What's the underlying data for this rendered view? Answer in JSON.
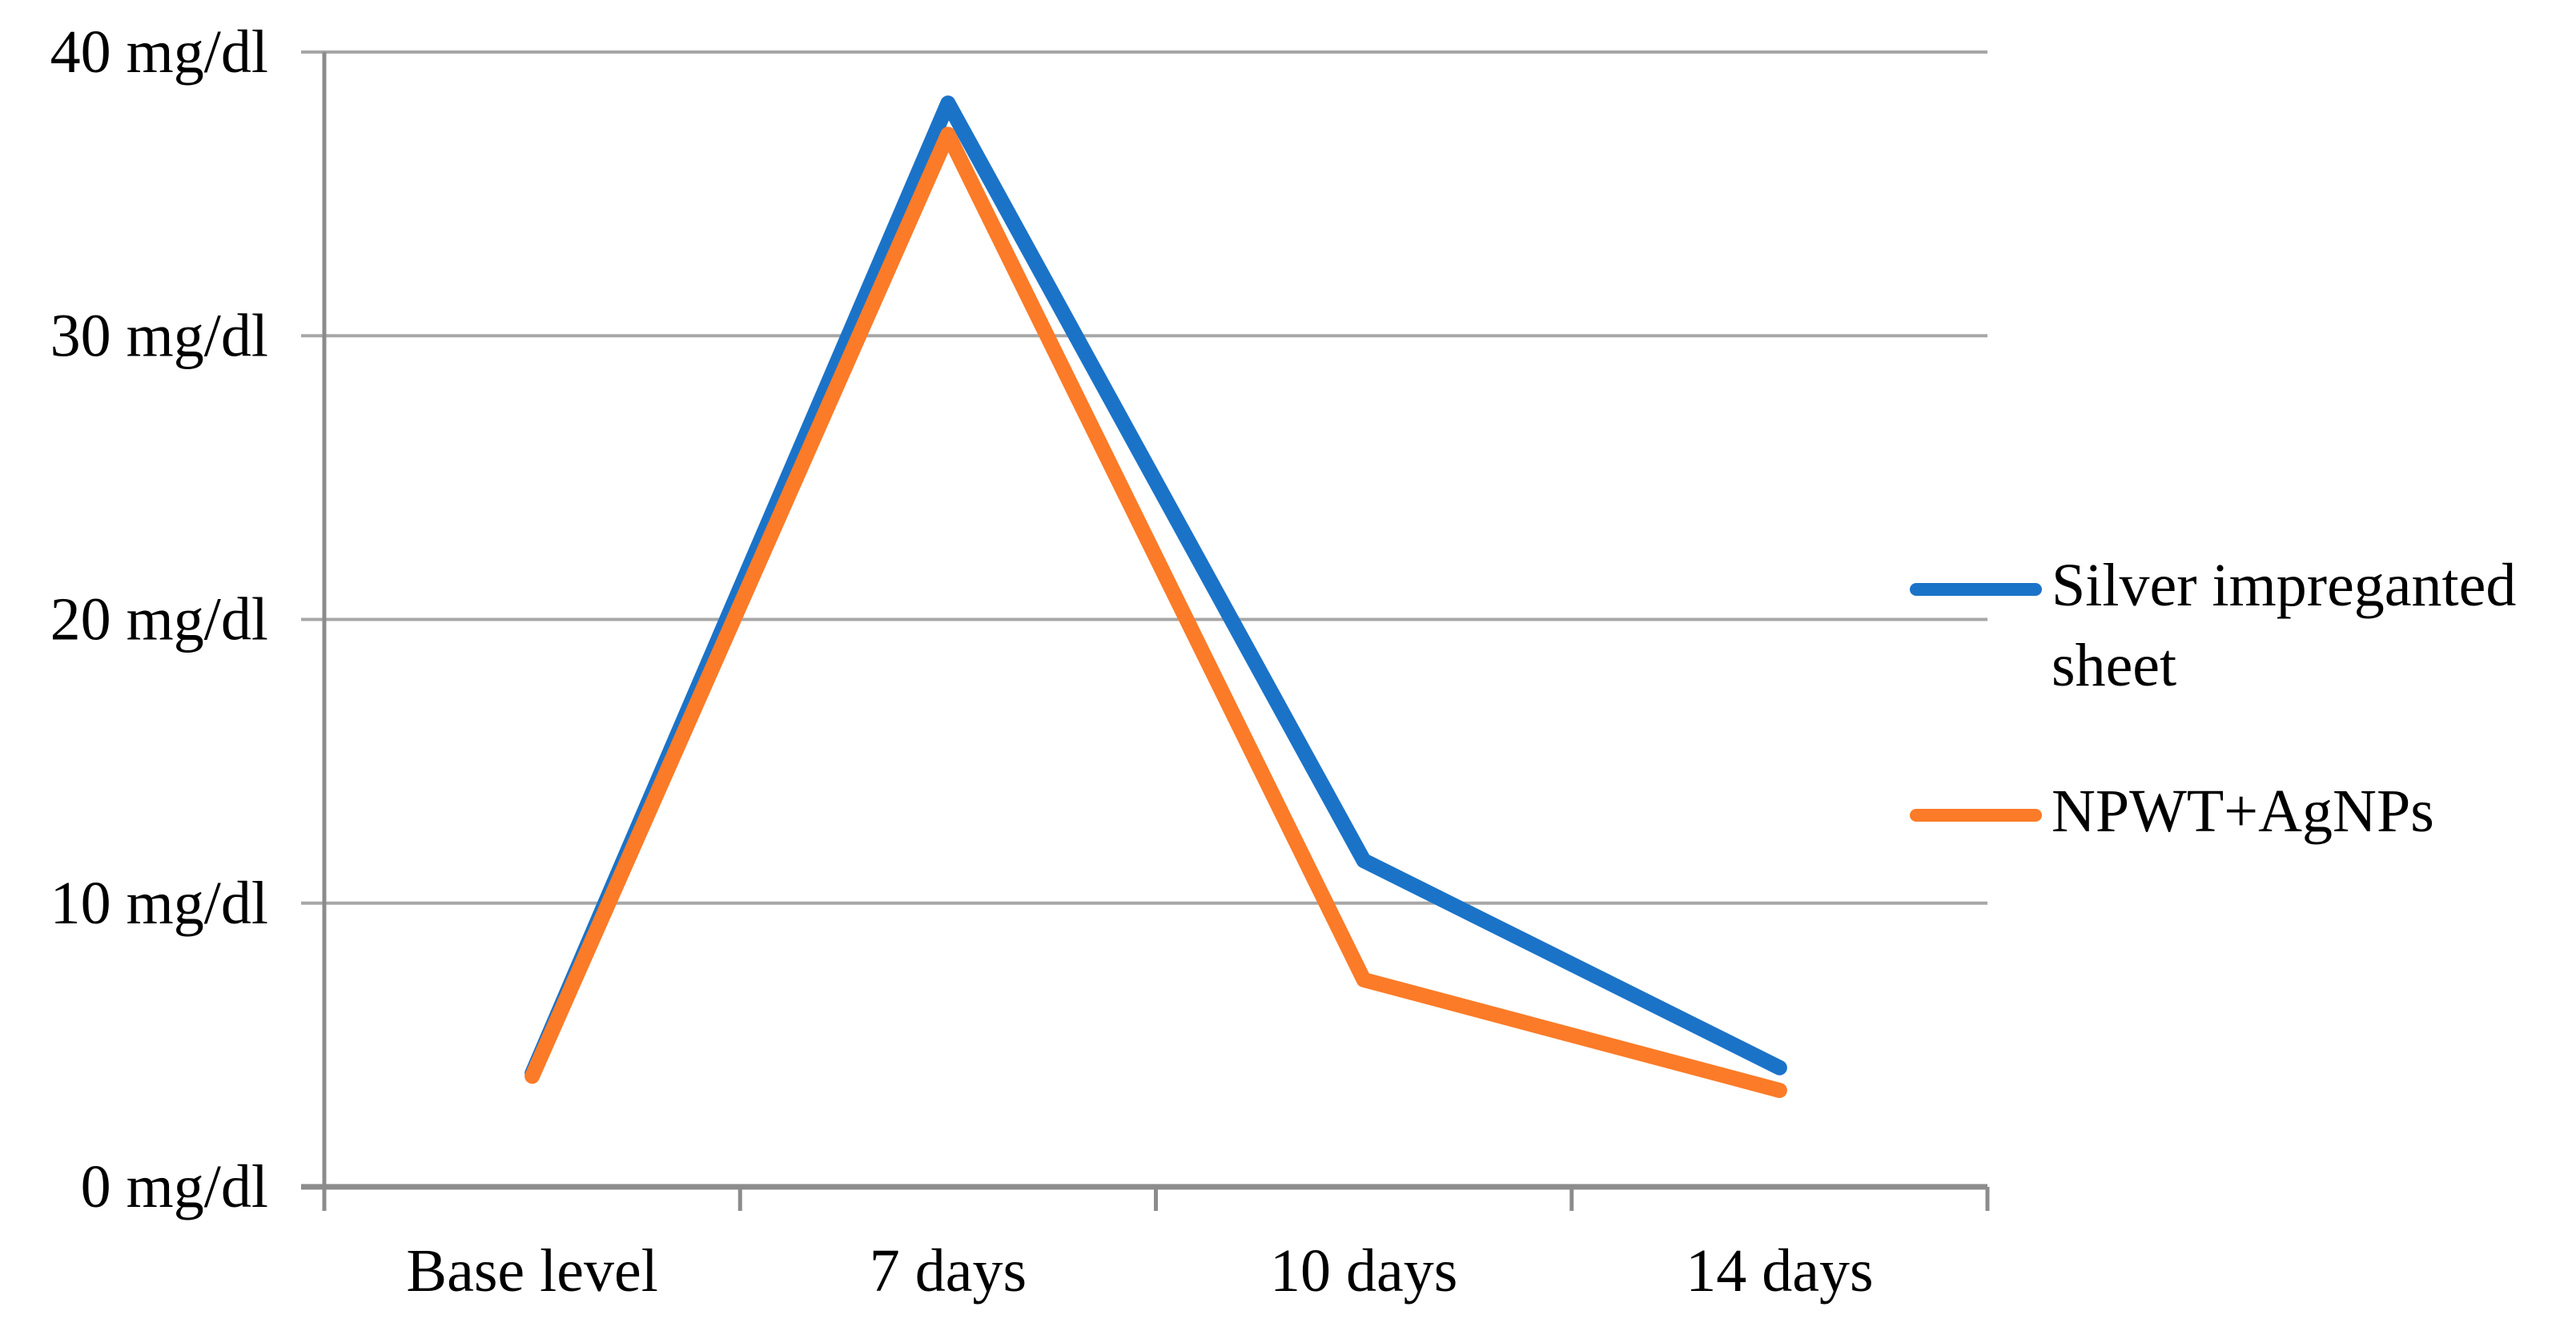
{
  "figure": {
    "background": "#FFFFFF",
    "text_color": "#000000"
  },
  "legend": {
    "position": "right",
    "entries": [
      {
        "label": "Silver impreganted sheet",
        "lines": [
          "Silver impreganted",
          "sheet"
        ],
        "color": "#1B73C8"
      },
      {
        "label": "NPWT+AgNPs",
        "lines": [
          "NPWT+AgNPs"
        ],
        "color": "#FB7B28"
      }
    ]
  },
  "chart_data": {
    "type": "line",
    "categories": [
      "Base level",
      "7 days",
      "10 days",
      "14 days"
    ],
    "series": [
      {
        "name": "Silver impreganted sheet",
        "color": "#1B73C8",
        "values": [
          4.0,
          38.2,
          11.5,
          4.2
        ]
      },
      {
        "name": "NPWT+AgNPs",
        "color": "#FB7B28",
        "values": [
          3.9,
          37.1,
          7.3,
          3.4
        ]
      }
    ],
    "y_unit": "mg/dl",
    "y_ticks": [
      0,
      10,
      20,
      30,
      40
    ],
    "y_tick_labels": [
      "0 mg/dl",
      "10 mg/dl",
      "20 mg/dl",
      "30 mg/dl",
      "40 mg/dl"
    ],
    "ylim": [
      0,
      40
    ],
    "xlabel": "",
    "ylabel": "",
    "title": "",
    "grid": "horizontal",
    "gridline_color": "#A7A7A7",
    "axis_color": "#8C8C8C",
    "legend_position": "right"
  }
}
